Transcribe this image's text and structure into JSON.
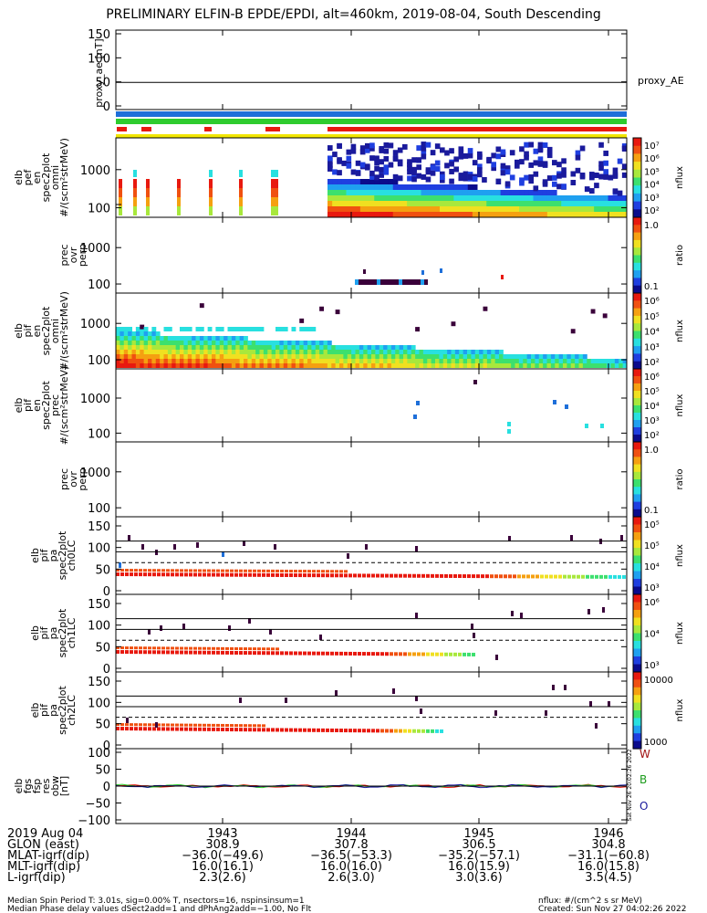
{
  "title": "PRELIMINARY ELFIN-B EPDE/EPDI, alt=460km, 2019-08-04, South Descending",
  "colors": {
    "red": "#e8190f",
    "blue": "#1e6fd9",
    "green": "#2ecc2e",
    "yellow": "#f2e600",
    "navy": "#1a1a9c"
  },
  "chart_data": [
    {
      "type": "line",
      "name": "proxy_ae",
      "ylabel": "proxy_ae [nT]",
      "yticks": [
        "150",
        "100",
        "50",
        "0"
      ],
      "ylim": [
        0,
        150
      ],
      "legend": "proxy_AE",
      "values": [
        49,
        49,
        49,
        49
      ]
    },
    {
      "type": "heatmap",
      "name": "elb_pef_en_spec2plot_omni",
      "ylabel": [
        "elb",
        "pef",
        "en",
        "spec2plot",
        "omni",
        "#/(scm²strMeV)"
      ],
      "yticks": [
        "1000",
        "100"
      ],
      "cbar_ticks": [
        "10⁷",
        "10⁶",
        "10⁵",
        "10⁴",
        "10³",
        "10²"
      ],
      "cbar_label": "nflux"
    },
    {
      "type": "heatmap",
      "name": "elb_pef_prec_ovr_perp",
      "ylabel": [
        "prec",
        "ovr",
        "perp"
      ],
      "yticks": [
        "1000",
        "100"
      ],
      "cbar_ticks": [
        "1.0",
        "0.1"
      ],
      "cbar_label": "ratio"
    },
    {
      "type": "heatmap",
      "name": "elb_pif_en_spec2plot_omni",
      "ylabel": [
        "elb",
        "pif",
        "en",
        "spec2plot",
        "omni",
        "#/(scm²strMeV)"
      ],
      "yticks": [
        "1000",
        "100"
      ],
      "cbar_ticks": [
        "10⁶",
        "10⁵",
        "10⁴",
        "10³",
        "10²"
      ],
      "cbar_label": "nflux"
    },
    {
      "type": "heatmap",
      "name": "elb_pif_en_spec2plot_prec",
      "ylabel": [
        "elb",
        "pif",
        "en",
        "spec2plot",
        "prec",
        "#/(scm²strMeV)"
      ],
      "yticks": [
        "1000",
        "100"
      ],
      "cbar_ticks": [
        "10⁶",
        "10⁵",
        "10⁴",
        "10³",
        "10²"
      ],
      "cbar_label": "nflux"
    },
    {
      "type": "heatmap",
      "name": "elb_pif_prec_ovr_perp",
      "ylabel": [
        "prec",
        "ovr",
        "perp"
      ],
      "yticks": [
        "1000",
        "100"
      ],
      "cbar_ticks": [
        "1.0",
        "0.1"
      ],
      "cbar_label": "ratio"
    },
    {
      "type": "heatmap",
      "name": "elb_pif_pa_spec2plot_ch0LC",
      "ylabel": [
        "elb",
        "pif",
        "pa",
        "spec2plot",
        "ch0LC"
      ],
      "yticks": [
        "150",
        "100",
        "50",
        "0"
      ],
      "cbar_ticks": [
        "10⁵",
        "10⁵",
        "10⁴",
        "10³"
      ],
      "cbar_label": "nflux"
    },
    {
      "type": "heatmap",
      "name": "elb_pif_pa_spec2plot_ch1LC",
      "ylabel": [
        "elb",
        "pif",
        "pa",
        "spec2plot",
        "ch1LC"
      ],
      "yticks": [
        "150",
        "100",
        "50",
        "0"
      ],
      "cbar_ticks": [
        "10⁶",
        "10⁴",
        "10³"
      ],
      "cbar_label": "nflux"
    },
    {
      "type": "heatmap",
      "name": "elb_pif_pa_spec2plot_ch2LC",
      "ylabel": [
        "elb",
        "pif",
        "pa",
        "spec2plot",
        "ch2LC"
      ],
      "yticks": [
        "150",
        "100",
        "50",
        "0"
      ],
      "cbar_ticks": [
        "10000",
        "1000"
      ],
      "cbar_label": "nflux"
    },
    {
      "type": "line",
      "name": "elb_fgs_fsp_res_obw",
      "ylabel": [
        "elb",
        "fgs",
        "fsp",
        "res",
        "obw",
        "[nT]"
      ],
      "yticks": [
        "100",
        "50",
        "0",
        "−50",
        "−100"
      ],
      "ylim": [
        -100,
        100
      ],
      "legend": [
        "W",
        "B",
        "O"
      ]
    }
  ],
  "xaxis": {
    "ticks": [
      "1943",
      "1944",
      "1945",
      "1946"
    ],
    "rows": [
      {
        "label": "2019 Aug 04",
        "values": [
          "1943",
          "1944",
          "1945",
          "1946"
        ]
      },
      {
        "label": "GLON (east)",
        "values": [
          "308.9",
          "307.8",
          "306.5",
          "304.8"
        ]
      },
      {
        "label": "MLAT-igrf(dip)",
        "values": [
          "−36.0(−49.6)",
          "−36.5(−53.3)",
          "−35.2(−57.1)",
          "−31.1(−60.8)"
        ]
      },
      {
        "label": "MLT-igrf(dip)",
        "values": [
          "16.0(16.1)",
          "16.0(16.0)",
          "16.0(15.9)",
          "16.0(15.8)"
        ]
      },
      {
        "label": "L-igrf(dip)",
        "values": [
          "2.3(2.6)",
          "2.6(3.0)",
          "3.0(3.6)",
          "3.5(4.5)"
        ]
      }
    ]
  },
  "footer": {
    "line1_left": "Median Spin Period T: 3.01s, sig=0.00% T, nsectors=16, nspinsinsum=1",
    "line2_left": "Median Phase delay values dSect2add=1 and dPhAng2add=−1.00, No Flt",
    "line1_right": "nflux: #/(cm^2 s sr MeV)",
    "line2_right": "Created: Sun Nov 27 04:02:26 2022",
    "side_stamp": "Sat Nov 26 20:02:26 2022"
  }
}
